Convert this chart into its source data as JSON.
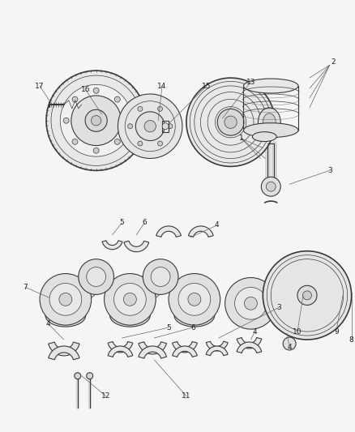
{
  "bg": "#f5f5f5",
  "lc": "#3a3a3a",
  "lc2": "#666666",
  "tc": "#222222",
  "fs_label": 6.5,
  "lw_main": 0.8,
  "lw_thin": 0.5,
  "lw_thick": 1.2
}
